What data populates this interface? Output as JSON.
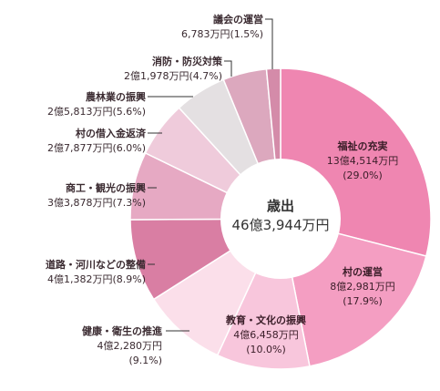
{
  "chart_data": {
    "type": "pie",
    "variant": "donut",
    "center_title": "歳出",
    "center_total": "46億3,944万円",
    "slices": [
      {
        "name": "福祉の充実",
        "amount": "13億4,514万円",
        "percent_label": "(29.0%)",
        "value": 29.0,
        "color": "#ef86b1"
      },
      {
        "name": "村の運営",
        "amount": "8億2,981万円",
        "percent_label": "(17.9%)",
        "value": 17.9,
        "color": "#f49ec2"
      },
      {
        "name": "教育・文化の振興",
        "amount": "4億6,458万円",
        "percent_label": "(10.0%)",
        "value": 10.0,
        "color": "#f8c6dc"
      },
      {
        "name": "健康・衛生の推進",
        "amount": "4億2,280万円",
        "percent_label": "(9.1%)",
        "value": 9.1,
        "color": "#fbdfea"
      },
      {
        "name": "道路・河川などの整備",
        "amount": "4億1,382万円",
        "percent_label": "(8.9%)",
        "value": 8.9,
        "color": "#d97ea3"
      },
      {
        "name": "商工・観光の振興",
        "amount": "3億3,878万円",
        "percent_label": "(7.3%)",
        "value": 7.3,
        "color": "#e6a9c3"
      },
      {
        "name": "村の借入金返済",
        "amount": "2億7,877万円",
        "percent_label": "(6.0%)",
        "value": 6.0,
        "color": "#efcbdb"
      },
      {
        "name": "農林業の振興",
        "amount": "2億5,813万円",
        "percent_label": "(5.6%)",
        "value": 5.6,
        "color": "#e4e0e2"
      },
      {
        "name": "消防・防災対策",
        "amount": "2億1,978万円",
        "percent_label": "(4.7%)",
        "value": 4.7,
        "color": "#dca8be"
      },
      {
        "name": "議会の運営",
        "amount": "6,783万円",
        "percent_label": "(1.5%)",
        "value": 1.5,
        "color": "#d48ba9"
      }
    ]
  }
}
